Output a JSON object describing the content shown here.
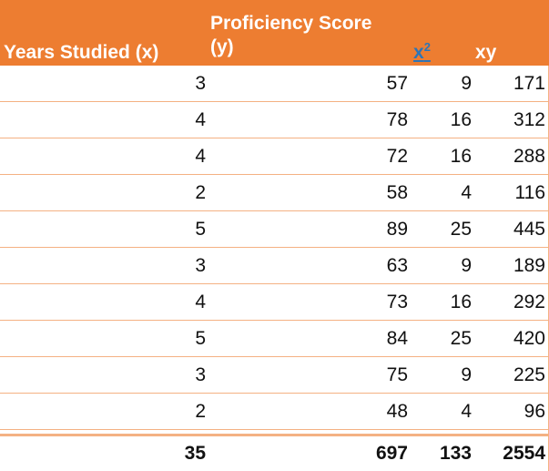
{
  "header": {
    "years_studied": "Years Studied (x)",
    "proficiency_line1": "Proficiency Score",
    "proficiency_line2": "(y)",
    "x2_base": "x",
    "x2_exp": "2",
    "xy": "xy"
  },
  "rows": [
    {
      "x": "3",
      "y": "57",
      "x2": "9",
      "xy": "171"
    },
    {
      "x": "4",
      "y": "78",
      "x2": "16",
      "xy": "312"
    },
    {
      "x": "4",
      "y": "72",
      "x2": "16",
      "xy": "288"
    },
    {
      "x": "2",
      "y": "58",
      "x2": "4",
      "xy": "116"
    },
    {
      "x": "5",
      "y": "89",
      "x2": "25",
      "xy": "445"
    },
    {
      "x": "3",
      "y": "63",
      "x2": "9",
      "xy": "189"
    },
    {
      "x": "4",
      "y": "73",
      "x2": "16",
      "xy": "292"
    },
    {
      "x": "5",
      "y": "84",
      "x2": "25",
      "xy": "420"
    },
    {
      "x": "3",
      "y": "75",
      "x2": "9",
      "xy": "225"
    },
    {
      "x": "2",
      "y": "48",
      "x2": "4",
      "xy": "96"
    }
  ],
  "totals": {
    "x": "35",
    "y": "697",
    "x2": "133",
    "xy": "2554"
  },
  "colors": {
    "header_bg": "#ed7d31",
    "header_text": "#ffffff",
    "x2_link": "#2e75b6",
    "row_border": "#f4b183"
  }
}
